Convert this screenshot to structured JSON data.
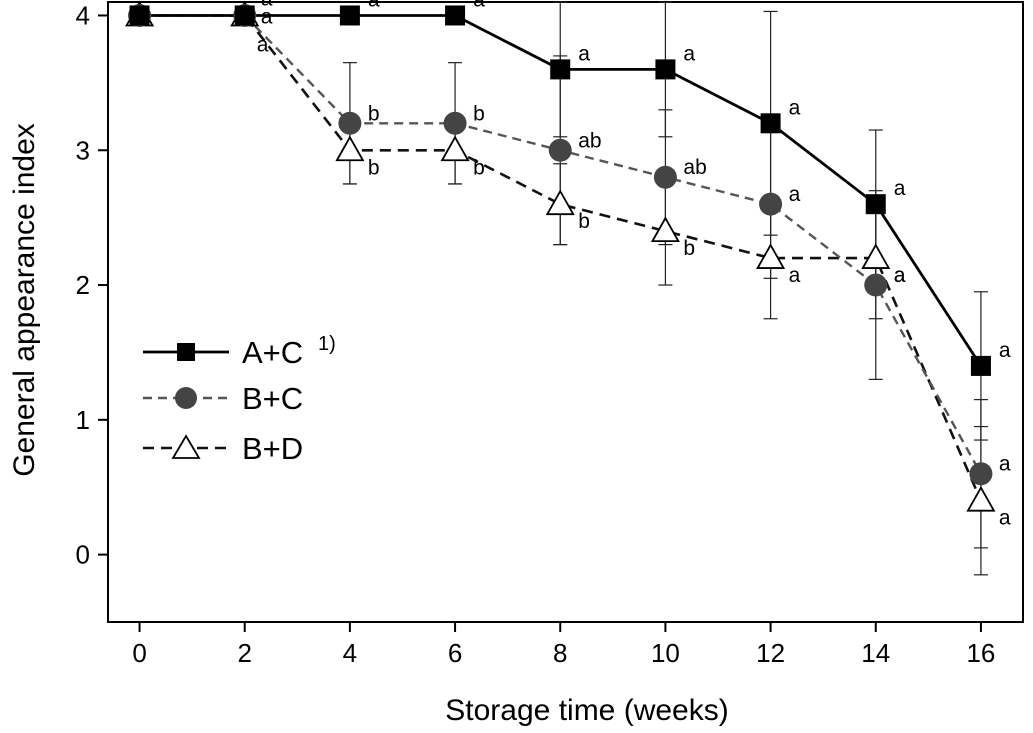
{
  "chart_data": {
    "type": "line",
    "xlabel": "Storage time (weeks)",
    "ylabel": "General appearance index",
    "xlim": [
      -0.6,
      16.8
    ],
    "ylim": [
      -0.5,
      4.1
    ],
    "x": [
      0,
      2,
      4,
      6,
      8,
      10,
      12,
      14,
      16
    ],
    "xticks": [
      "0",
      "2",
      "4",
      "6",
      "8",
      "10",
      "12",
      "14",
      "16"
    ],
    "yticks": [
      "0",
      "1",
      "2",
      "3",
      "4"
    ],
    "ytick_values": [
      0,
      1,
      2,
      3,
      4
    ],
    "legend_position": "middle-left",
    "series": [
      {
        "name": "A+C",
        "legend_sup": "1)",
        "marker": "square-filled",
        "line": "solid",
        "color": "#000000",
        "values": [
          4,
          4,
          4,
          4,
          3.6,
          3.6,
          3.2,
          2.6,
          1.4
        ],
        "errors": [
          0,
          0,
          0,
          0,
          0.5,
          0.5,
          0.83,
          0.55,
          0.55
        ],
        "letters": [
          "",
          "a",
          "a",
          "a",
          "a",
          "a",
          "a",
          "a",
          "a"
        ]
      },
      {
        "name": "B+C",
        "marker": "circle-filled",
        "line": "dashed",
        "color": "#555555",
        "values": [
          4,
          4,
          3.2,
          3.2,
          3.0,
          2.8,
          2.6,
          2.0,
          0.6
        ],
        "errors": [
          0,
          0,
          0.45,
          0.45,
          0.7,
          0.5,
          0.55,
          0.7,
          0.55
        ],
        "letters": [
          "",
          "a",
          "b",
          "b",
          "ab",
          "ab",
          "a",
          "a",
          "a"
        ]
      },
      {
        "name": "B+D",
        "marker": "triangle-open",
        "line": "dashed",
        "color": "#111111",
        "values": [
          4,
          4,
          3.0,
          3.0,
          2.6,
          2.4,
          2.2,
          2.2,
          0.4
        ],
        "errors": [
          0,
          0,
          0.25,
          0.25,
          0.3,
          0.4,
          0.45,
          0.45,
          0.55
        ],
        "letters": [
          "",
          "a",
          "b",
          "b",
          "b",
          "b",
          "a",
          "a",
          "a"
        ]
      }
    ]
  }
}
